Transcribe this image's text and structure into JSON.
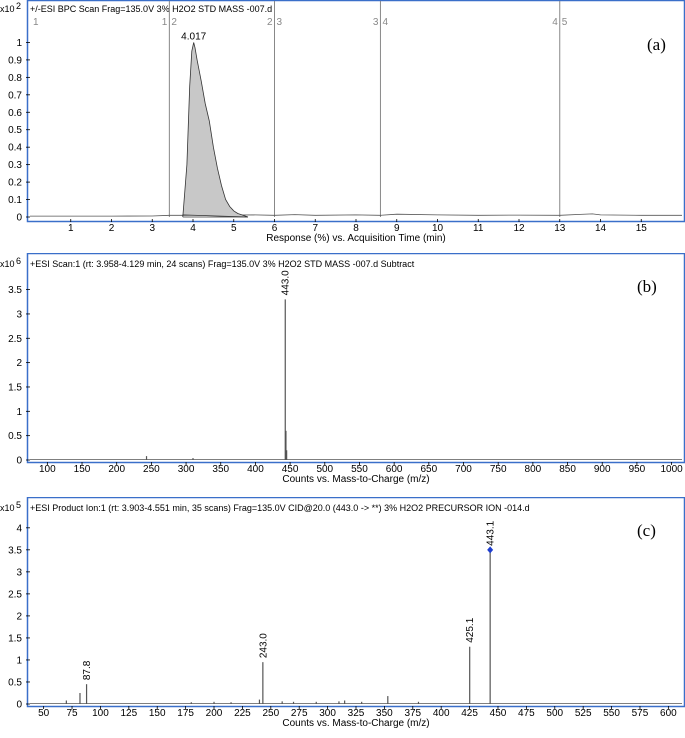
{
  "chart_data": [
    {
      "type": "area",
      "panel_label": "(a)",
      "title": "+/-ESI BPC Scan Frag=135.0V 3% H2O2 STD MASS -007.d",
      "y_multiplier": "x10",
      "y_exponent": "2",
      "xlabel": "Response (%) vs. Acquisition Time (min)",
      "xlim": [
        0,
        16.0
      ],
      "ylim": [
        0,
        1.1
      ],
      "xticks": [
        1,
        2,
        3,
        4,
        5,
        6,
        7,
        8,
        9,
        10,
        11,
        12,
        13,
        14,
        15
      ],
      "yticks": [
        0,
        0.1,
        0.2,
        0.3,
        0.4,
        0.5,
        0.6,
        0.7,
        0.8,
        0.9,
        1
      ],
      "segments": [
        {
          "x": 0.0,
          "labels": [
            "1"
          ]
        },
        {
          "x": 3.42,
          "labels": [
            "1",
            "2"
          ]
        },
        {
          "x": 6.0,
          "labels": [
            "2",
            "3"
          ]
        },
        {
          "x": 8.6,
          "labels": [
            "3",
            "4"
          ]
        },
        {
          "x": 13.0,
          "labels": [
            "4",
            "5"
          ]
        }
      ],
      "peak_label": "4.017",
      "peak_label_x": 4.017,
      "peak_label_y": 1.0,
      "peak": {
        "x": [
          3.75,
          3.85,
          3.92,
          3.97,
          4.017,
          4.05,
          4.1,
          4.2,
          4.3,
          4.4,
          4.5,
          4.6,
          4.7,
          4.8,
          4.9,
          5.0,
          5.1,
          5.2,
          5.35
        ],
        "y": [
          0.0,
          0.3,
          0.75,
          0.95,
          1.0,
          0.97,
          0.9,
          0.78,
          0.65,
          0.55,
          0.4,
          0.28,
          0.18,
          0.1,
          0.06,
          0.035,
          0.02,
          0.012,
          0.0
        ]
      },
      "baseline": {
        "x": [
          0,
          1,
          2,
          3,
          3.42,
          3.75,
          5.5,
          6.0,
          6.5,
          7.0,
          8.0,
          8.6,
          9.0,
          10.0,
          11.0,
          12.0,
          13.0,
          13.5,
          13.8,
          14.0,
          15.0,
          16.0
        ],
        "y": [
          0.005,
          0.005,
          0.005,
          0.006,
          0.01,
          0.01,
          0.012,
          0.01,
          0.014,
          0.01,
          0.012,
          0.01,
          0.016,
          0.012,
          0.01,
          0.011,
          0.01,
          0.015,
          0.018,
          0.012,
          0.01,
          0.01
        ]
      }
    },
    {
      "type": "bar",
      "panel_label": "(b)",
      "title": "+ESI Scan:1 (rt: 3.958-4.129 min, 24 scans) Frag=135.0V 3% H2O2 STD MASS -007.d  Subtract",
      "y_multiplier": "x10",
      "y_exponent": "6",
      "xlabel": "Counts vs. Mass-to-Charge (m/z)",
      "xlim": [
        75,
        1015
      ],
      "ylim": [
        0,
        3.8
      ],
      "xticks": [
        100,
        150,
        200,
        250,
        300,
        350,
        400,
        450,
        500,
        550,
        600,
        650,
        700,
        750,
        800,
        850,
        900,
        950,
        1000
      ],
      "yticks": [
        0,
        0.5,
        1,
        1.5,
        2,
        2.5,
        3,
        3.5
      ],
      "peaks": {
        "x": [
          243,
          310,
          443,
          444,
          445
        ],
        "y": [
          0.08,
          0.04,
          3.3,
          0.6,
          0.2
        ]
      },
      "labels": [
        {
          "x": 443,
          "y": 3.3,
          "text": "443.0"
        }
      ]
    },
    {
      "type": "bar",
      "panel_label": "(c)",
      "title": "+ESI Product Ion:1 (rt: 3.903-4.551 min, 35 scans) Frag=135.0V CID@20.0 (443.0 -> **) 3% H2O2 PRECURSOR ION -014.d",
      "y_multiplier": "x10",
      "y_exponent": "5",
      "xlabel": "Counts vs. Mass-to-Charge (m/z)",
      "xlim": [
        38,
        612
      ],
      "ylim": [
        0,
        4.2
      ],
      "xticks": [
        50,
        75,
        100,
        125,
        150,
        175,
        200,
        225,
        250,
        275,
        300,
        325,
        350,
        375,
        400,
        425,
        450,
        475,
        500,
        525,
        550,
        575,
        600
      ],
      "yticks": [
        0,
        0.5,
        1,
        1.5,
        2,
        2.5,
        3,
        3.5,
        4
      ],
      "peaks": {
        "x": [
          70,
          82,
          87.8,
          180,
          200,
          215,
          240,
          243.0,
          260,
          270,
          290,
          310,
          315,
          330,
          353,
          380,
          425.1,
          443.1
        ],
        "y": [
          0.08,
          0.25,
          0.45,
          0.04,
          0.05,
          0.04,
          0.1,
          0.95,
          0.06,
          0.05,
          0.05,
          0.06,
          0.08,
          0.05,
          0.18,
          0.05,
          1.3,
          3.5
        ]
      },
      "labels": [
        {
          "x": 87.8,
          "y": 0.45,
          "text": "87.8"
        },
        {
          "x": 243.0,
          "y": 0.95,
          "text": "243.0"
        },
        {
          "x": 425.1,
          "y": 1.3,
          "text": "425.1"
        },
        {
          "x": 443.1,
          "y": 3.5,
          "text": "443.1"
        }
      ],
      "marker": {
        "x": 443.1,
        "y": 3.5,
        "color": "#1f3fd0"
      }
    }
  ],
  "colors": {
    "frame": "#3a6fc9",
    "trace": "#555555",
    "fill": "#c8c8c8",
    "segment": "#888888"
  }
}
